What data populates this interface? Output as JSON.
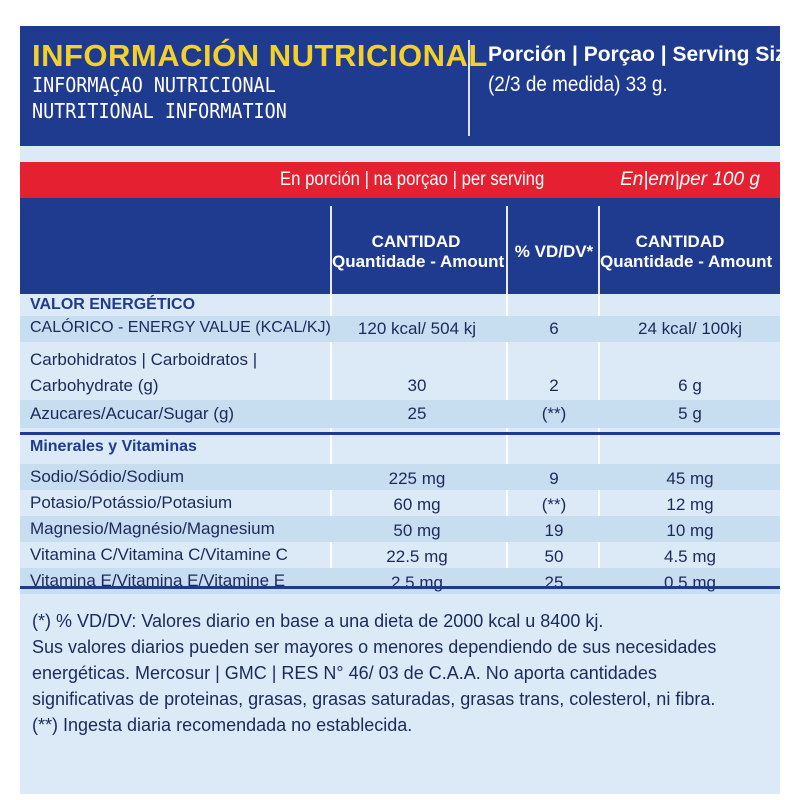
{
  "header": {
    "title_es": "INFORMACIÓN NUTRICIONAL",
    "title_pt": "INFORMAÇAO NUTRICIONAL",
    "title_en": "NUTRITIONAL INFORMATION",
    "serving_label": "Porción | Porçao | Serving Size",
    "serving_amount": "(2/3 de medida) 33 g."
  },
  "redbar": {
    "per_serving": "En porción | na porçao | per serving",
    "per_100": "En|em|per 100 g"
  },
  "columns": {
    "amount_top": "CANTIDAD",
    "amount_bottom": "Quantidade - Amount",
    "vd": "% VD/DV*",
    "amount100_top": "CANTIDAD",
    "amount100_bottom": "Quantidade - Amount"
  },
  "energy_section": "VALOR ENERGÉTICO",
  "energy_rows": [
    {
      "name": "CALÓRICO - ENERGY VALUE (KCAL/KJ)",
      "amount": "120 kcal/ 504 kj",
      "vd": "6",
      "per100": "24 kcal/ 100kj"
    },
    {
      "name": "Carbohidratos | Carboidratos |",
      "name2": "Carbohydrate (g)",
      "amount": "30",
      "vd": "2",
      "per100": "6 g"
    },
    {
      "name": "Azucares/Acucar/Sugar (g)",
      "amount": "25",
      "vd": "(**)",
      "per100": "5 g"
    }
  ],
  "minerals_section": "Minerales y Vitaminas",
  "mineral_rows": [
    {
      "name": "Sodio/Sódio/Sodium",
      "amount": "225 mg",
      "vd": "9",
      "per100": "45 mg"
    },
    {
      "name": "Potasio/Potássio/Potasium",
      "amount": "60 mg",
      "vd": "(**)",
      "per100": "12 mg"
    },
    {
      "name": "Magnesio/Magnésio/Magnesium",
      "amount": "50 mg",
      "vd": "19",
      "per100": "10 mg"
    },
    {
      "name": "Vitamina C/Vitamina C/Vitamine C",
      "amount": "22.5 mg",
      "vd": "50",
      "per100": "4.5 mg"
    },
    {
      "name": "Vitamina E/Vitamina E/Vitamine E",
      "amount": "2.5 mg",
      "vd": "25",
      "per100": "0.5 mg"
    }
  ],
  "footnote": {
    "line1": "(*) % VD/DV: Valores diario en base a una dieta de 2000 kcal u 8400 kj.",
    "line2": "Sus valores diarios pueden ser mayores o menores dependiendo de sus necesidades",
    "line3": "energéticas. Mercosur | GMC | RES N° 46/ 03 de C.A.A. No aporta cantidades",
    "line4": "significativas de proteinas, grasas, grasas saturadas, grasas trans, colesterol, ni fibra.",
    "line5": "(**) Ingesta diaria recomendada no establecida."
  },
  "colors": {
    "navy": "#1f3b8f",
    "yellow": "#f3d12a",
    "red": "#e52031",
    "panel": "#dbeaf6",
    "shade": "#c7ddf0"
  }
}
